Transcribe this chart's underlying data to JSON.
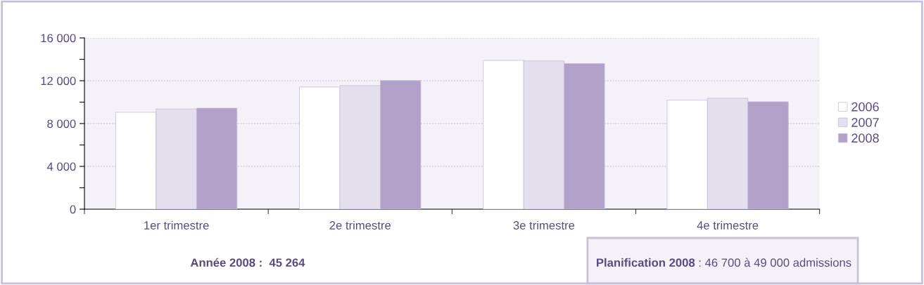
{
  "chart_data": {
    "type": "bar",
    "categories": [
      "1er trimestre",
      "2e trimestre",
      "3e trimestre",
      "4e trimestre"
    ],
    "series": [
      {
        "name": "2006",
        "color": "#ffffff",
        "values": [
          9050,
          11420,
          13900,
          10180
        ]
      },
      {
        "name": "2007",
        "color": "#e4dfec",
        "values": [
          9360,
          11550,
          13850,
          10370
        ]
      },
      {
        "name": "2008",
        "color": "#b1a0c7",
        "values": [
          9440,
          12020,
          13600,
          10040
        ]
      }
    ],
    "ylim": [
      0,
      16000
    ],
    "yticks": [
      {
        "value": 0,
        "label": "0"
      },
      {
        "value": 2000,
        "label": null
      },
      {
        "value": 4000,
        "label": "4 000"
      },
      {
        "value": 6000,
        "label": null
      },
      {
        "value": 8000,
        "label": "8 000"
      },
      {
        "value": 10000,
        "label": null
      },
      {
        "value": 12000,
        "label": "12 000"
      },
      {
        "value": 14000,
        "label": null
      },
      {
        "value": 16000,
        "label": "16 000"
      }
    ],
    "grid": "y",
    "legend": "right",
    "annotations": [
      "Année 2008 :  45 264",
      "Planification 2008",
      ": 46 700 à 49 000 admissions"
    ]
  }
}
